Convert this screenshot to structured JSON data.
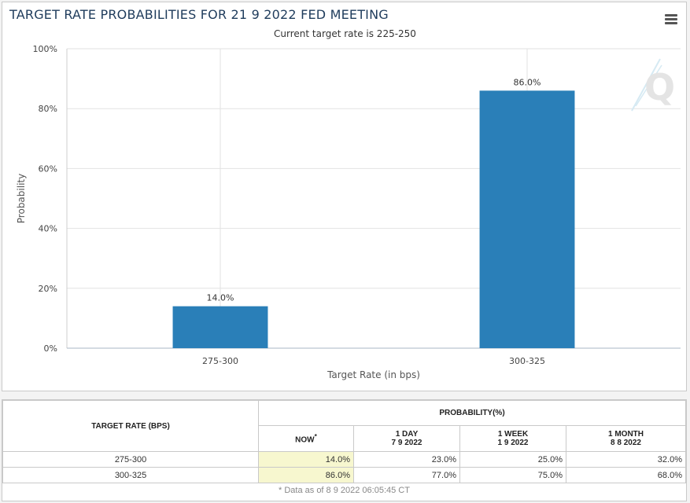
{
  "chart": {
    "title": "TARGET RATE PROBABILITIES FOR 21 9 2022 FED MEETING",
    "subtitle": "Current target rate is 225-250",
    "watermark": "Q"
  },
  "chart_data": {
    "type": "bar",
    "title": "TARGET RATE PROBABILITIES FOR 21 9 2022 FED MEETING",
    "subtitle": "Current target rate is 225-250",
    "categories": [
      "275-300",
      "300-325"
    ],
    "values": [
      14.0,
      86.0
    ],
    "value_labels": [
      "14.0%",
      "86.0%"
    ],
    "xlabel": "Target Rate (in bps)",
    "ylabel": "Probability",
    "ylim": [
      0,
      100
    ],
    "yticks": [
      0,
      20,
      40,
      60,
      80,
      100
    ],
    "ytick_labels": [
      "0%",
      "20%",
      "40%",
      "60%",
      "80%",
      "100%"
    ],
    "grid": true,
    "bar_color": "#2a7fb8"
  },
  "table": {
    "rate_header": "TARGET RATE (BPS)",
    "prob_header": "PROBABILITY(%)",
    "columns": [
      {
        "label": "NOW",
        "marker": "*",
        "date": ""
      },
      {
        "label": "1 DAY",
        "date": "7 9 2022"
      },
      {
        "label": "1 WEEK",
        "date": "1 9 2022"
      },
      {
        "label": "1 MONTH",
        "date": "8 8 2022"
      }
    ],
    "rows": [
      {
        "rate": "275-300",
        "values": [
          "14.0%",
          "23.0%",
          "25.0%",
          "32.0%"
        ]
      },
      {
        "rate": "300-325",
        "values": [
          "86.0%",
          "77.0%",
          "75.0%",
          "68.0%"
        ]
      }
    ],
    "footnote": "* Data as of 8 9 2022 06:05:45 CT"
  }
}
